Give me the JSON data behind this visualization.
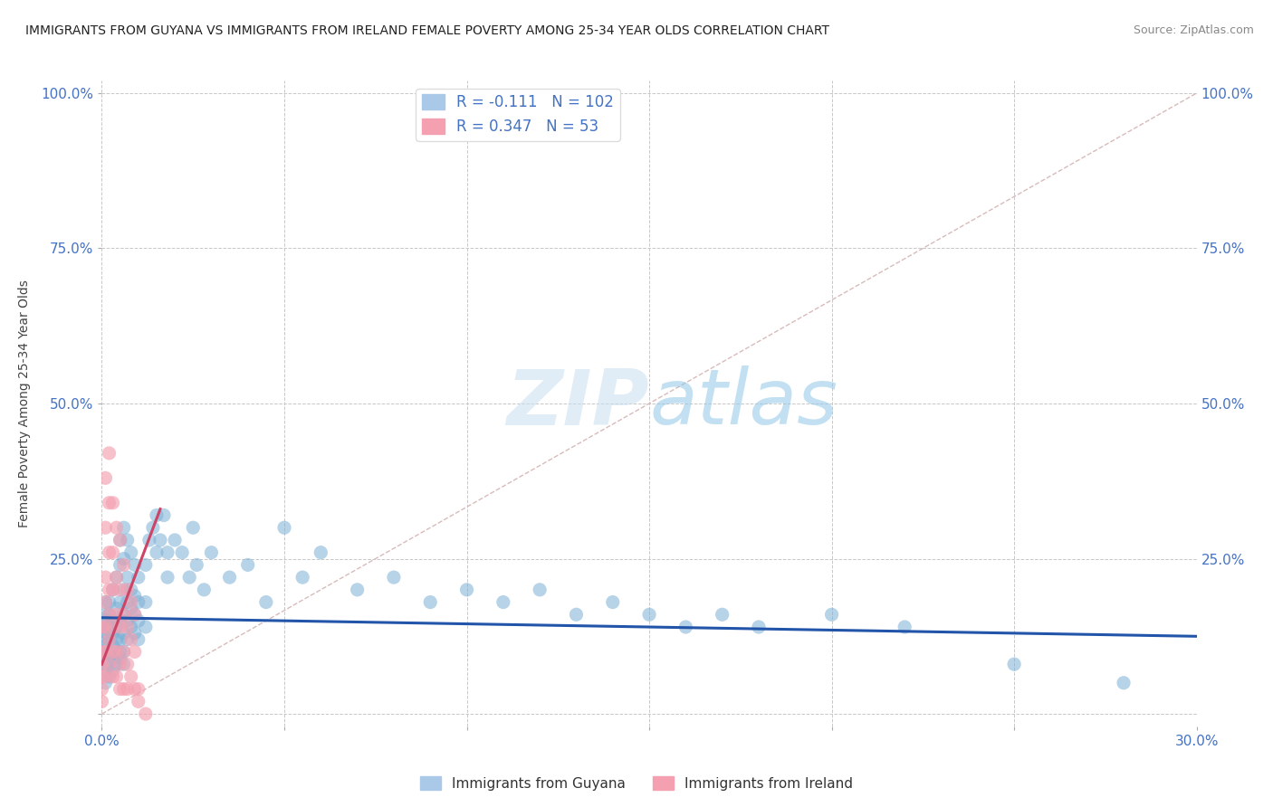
{
  "title": "IMMIGRANTS FROM GUYANA VS IMMIGRANTS FROM IRELAND FEMALE POVERTY AMONG 25-34 YEAR OLDS CORRELATION CHART",
  "source": "Source: ZipAtlas.com",
  "ylabel": "Female Poverty Among 25-34 Year Olds",
  "xlim": [
    0.0,
    0.3
  ],
  "ylim": [
    0.0,
    1.0
  ],
  "background_color": "#ffffff",
  "grid_color": "#cccccc",
  "watermark_zip": "ZIP",
  "watermark_atlas": "atlas",
  "guyana_color": "#7bafd4",
  "ireland_color": "#f4a0b0",
  "guyana_line_color": "#2255aa",
  "ireland_line_color": "#cc4466",
  "diag_color": "#ccbbbb",
  "guyana_R": -0.111,
  "guyana_N": 102,
  "ireland_R": 0.347,
  "ireland_N": 53,
  "legend_label_guyana": "Immigrants from Guyana",
  "legend_label_ireland": "Immigrants from Ireland",
  "guyana_scatter": [
    [
      0.0,
      0.14
    ],
    [
      0.0,
      0.12
    ],
    [
      0.0,
      0.1
    ],
    [
      0.0,
      0.08
    ],
    [
      0.001,
      0.16
    ],
    [
      0.001,
      0.13
    ],
    [
      0.001,
      0.11
    ],
    [
      0.001,
      0.09
    ],
    [
      0.001,
      0.07
    ],
    [
      0.001,
      0.05
    ],
    [
      0.001,
      0.15
    ],
    [
      0.001,
      0.18
    ],
    [
      0.002,
      0.14
    ],
    [
      0.002,
      0.12
    ],
    [
      0.002,
      0.1
    ],
    [
      0.002,
      0.08
    ],
    [
      0.002,
      0.18
    ],
    [
      0.002,
      0.16
    ],
    [
      0.002,
      0.06
    ],
    [
      0.003,
      0.2
    ],
    [
      0.003,
      0.15
    ],
    [
      0.003,
      0.13
    ],
    [
      0.003,
      0.11
    ],
    [
      0.003,
      0.09
    ],
    [
      0.003,
      0.07
    ],
    [
      0.004,
      0.22
    ],
    [
      0.004,
      0.17
    ],
    [
      0.004,
      0.14
    ],
    [
      0.004,
      0.12
    ],
    [
      0.004,
      0.1
    ],
    [
      0.004,
      0.08
    ],
    [
      0.005,
      0.28
    ],
    [
      0.005,
      0.24
    ],
    [
      0.005,
      0.18
    ],
    [
      0.005,
      0.15
    ],
    [
      0.005,
      0.12
    ],
    [
      0.005,
      0.09
    ],
    [
      0.006,
      0.3
    ],
    [
      0.006,
      0.25
    ],
    [
      0.006,
      0.2
    ],
    [
      0.006,
      0.16
    ],
    [
      0.006,
      0.13
    ],
    [
      0.006,
      0.1
    ],
    [
      0.007,
      0.28
    ],
    [
      0.007,
      0.22
    ],
    [
      0.007,
      0.18
    ],
    [
      0.007,
      0.15
    ],
    [
      0.007,
      0.12
    ],
    [
      0.008,
      0.26
    ],
    [
      0.008,
      0.2
    ],
    [
      0.008,
      0.17
    ],
    [
      0.008,
      0.14
    ],
    [
      0.009,
      0.24
    ],
    [
      0.009,
      0.19
    ],
    [
      0.009,
      0.16
    ],
    [
      0.009,
      0.13
    ],
    [
      0.01,
      0.22
    ],
    [
      0.01,
      0.18
    ],
    [
      0.01,
      0.15
    ],
    [
      0.01,
      0.12
    ],
    [
      0.012,
      0.24
    ],
    [
      0.012,
      0.18
    ],
    [
      0.012,
      0.14
    ],
    [
      0.013,
      0.28
    ],
    [
      0.014,
      0.3
    ],
    [
      0.015,
      0.32
    ],
    [
      0.015,
      0.26
    ],
    [
      0.016,
      0.28
    ],
    [
      0.017,
      0.32
    ],
    [
      0.018,
      0.26
    ],
    [
      0.018,
      0.22
    ],
    [
      0.02,
      0.28
    ],
    [
      0.022,
      0.26
    ],
    [
      0.024,
      0.22
    ],
    [
      0.025,
      0.3
    ],
    [
      0.026,
      0.24
    ],
    [
      0.028,
      0.2
    ],
    [
      0.03,
      0.26
    ],
    [
      0.035,
      0.22
    ],
    [
      0.04,
      0.24
    ],
    [
      0.045,
      0.18
    ],
    [
      0.05,
      0.3
    ],
    [
      0.055,
      0.22
    ],
    [
      0.06,
      0.26
    ],
    [
      0.07,
      0.2
    ],
    [
      0.08,
      0.22
    ],
    [
      0.09,
      0.18
    ],
    [
      0.1,
      0.2
    ],
    [
      0.11,
      0.18
    ],
    [
      0.12,
      0.2
    ],
    [
      0.13,
      0.16
    ],
    [
      0.14,
      0.18
    ],
    [
      0.15,
      0.16
    ],
    [
      0.16,
      0.14
    ],
    [
      0.17,
      0.16
    ],
    [
      0.18,
      0.14
    ],
    [
      0.2,
      0.16
    ],
    [
      0.22,
      0.14
    ],
    [
      0.25,
      0.08
    ],
    [
      0.28,
      0.05
    ],
    [
      0.005,
      0.1
    ],
    [
      0.006,
      0.08
    ]
  ],
  "ireland_scatter": [
    [
      0.0,
      0.14
    ],
    [
      0.0,
      0.1
    ],
    [
      0.0,
      0.08
    ],
    [
      0.0,
      0.06
    ],
    [
      0.0,
      0.04
    ],
    [
      0.0,
      0.02
    ],
    [
      0.001,
      0.38
    ],
    [
      0.001,
      0.3
    ],
    [
      0.001,
      0.22
    ],
    [
      0.001,
      0.18
    ],
    [
      0.001,
      0.14
    ],
    [
      0.001,
      0.1
    ],
    [
      0.001,
      0.06
    ],
    [
      0.002,
      0.42
    ],
    [
      0.002,
      0.34
    ],
    [
      0.002,
      0.26
    ],
    [
      0.002,
      0.2
    ],
    [
      0.002,
      0.16
    ],
    [
      0.002,
      0.12
    ],
    [
      0.002,
      0.08
    ],
    [
      0.003,
      0.34
    ],
    [
      0.003,
      0.26
    ],
    [
      0.003,
      0.2
    ],
    [
      0.003,
      0.14
    ],
    [
      0.003,
      0.1
    ],
    [
      0.003,
      0.06
    ],
    [
      0.004,
      0.3
    ],
    [
      0.004,
      0.22
    ],
    [
      0.004,
      0.16
    ],
    [
      0.004,
      0.1
    ],
    [
      0.004,
      0.06
    ],
    [
      0.005,
      0.28
    ],
    [
      0.005,
      0.2
    ],
    [
      0.005,
      0.14
    ],
    [
      0.005,
      0.08
    ],
    [
      0.005,
      0.04
    ],
    [
      0.006,
      0.24
    ],
    [
      0.006,
      0.16
    ],
    [
      0.006,
      0.1
    ],
    [
      0.006,
      0.04
    ],
    [
      0.007,
      0.2
    ],
    [
      0.007,
      0.14
    ],
    [
      0.007,
      0.08
    ],
    [
      0.007,
      0.04
    ],
    [
      0.008,
      0.18
    ],
    [
      0.008,
      0.12
    ],
    [
      0.008,
      0.06
    ],
    [
      0.009,
      0.16
    ],
    [
      0.009,
      0.1
    ],
    [
      0.009,
      0.04
    ],
    [
      0.01,
      0.04
    ],
    [
      0.01,
      0.02
    ],
    [
      0.012,
      0.0
    ]
  ]
}
